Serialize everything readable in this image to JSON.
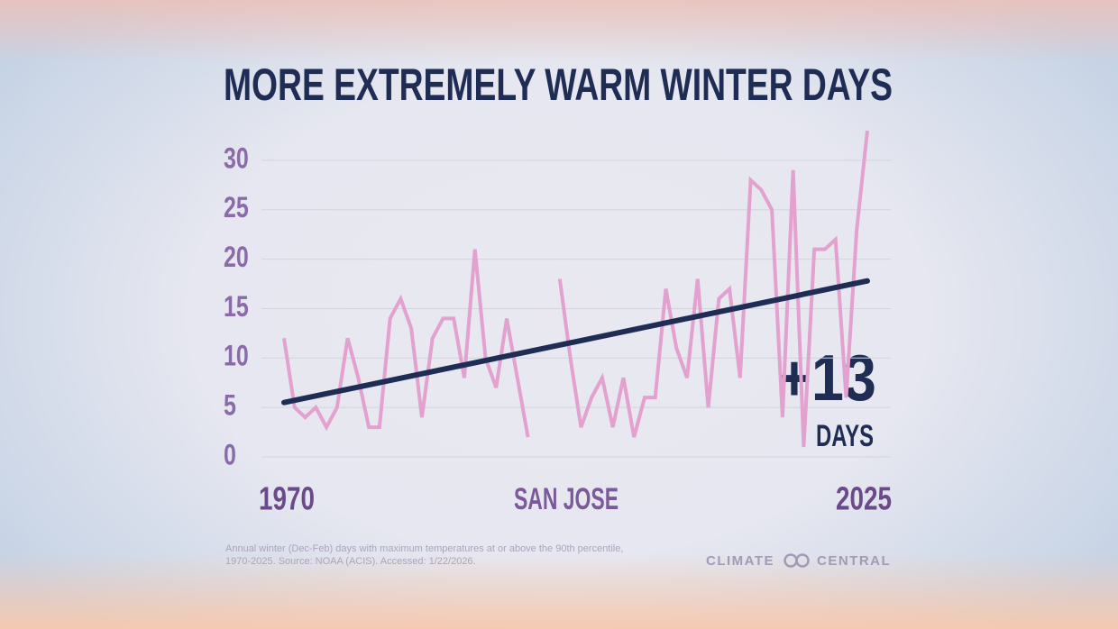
{
  "chart_data": {
    "type": "line",
    "title": "MORE EXTREMELY WARM WINTER DAYS",
    "location": "SAN JOSE",
    "x": [
      1970,
      1971,
      1972,
      1973,
      1974,
      1975,
      1976,
      1977,
      1978,
      1979,
      1980,
      1981,
      1982,
      1983,
      1984,
      1985,
      1986,
      1987,
      1988,
      1989,
      1990,
      1991,
      1992,
      1993,
      1994,
      1995,
      1996,
      1997,
      1998,
      1999,
      2000,
      2001,
      2002,
      2003,
      2004,
      2005,
      2006,
      2007,
      2008,
      2009,
      2010,
      2011,
      2012,
      2013,
      2014,
      2015,
      2016,
      2017,
      2018,
      2019,
      2020,
      2021,
      2022,
      2023,
      2024,
      2025
    ],
    "series": [
      {
        "color": "#e3a1cf",
        "values": [
          12,
          5,
          4,
          5,
          3,
          5,
          12,
          8,
          3,
          3,
          14,
          16,
          13,
          4,
          12,
          14,
          14,
          8,
          21,
          10,
          7,
          14,
          8,
          2,
          null,
          null,
          18,
          10,
          3,
          6,
          8,
          3,
          8,
          2,
          6,
          6,
          17,
          11,
          8,
          18,
          5,
          16,
          17,
          8,
          28,
          27,
          25,
          4,
          29,
          1,
          21,
          21,
          22,
          6,
          23,
          33
        ]
      }
    ],
    "trend": {
      "x": [
        1970,
        2025
      ],
      "values": [
        5.5,
        17.8
      ],
      "color": "#1f2d55"
    },
    "annotation": {
      "text": "+13",
      "unit": "DAYS"
    },
    "xlim": [
      1970,
      2025
    ],
    "xticks": [
      1970,
      2025
    ],
    "ylim": [
      0,
      33
    ],
    "yticks": [
      0,
      5,
      10,
      15,
      20,
      25,
      30
    ],
    "grid": true,
    "footnote": [
      "Annual winter (Dec-Feb) days with maximum temperatures at or above the 90th percentile,",
      "1970-2025. Source: NOAA (ACIS). Accessed: 1/22/2026."
    ],
    "logo": [
      "CLIMATE",
      "CENTRAL"
    ]
  }
}
